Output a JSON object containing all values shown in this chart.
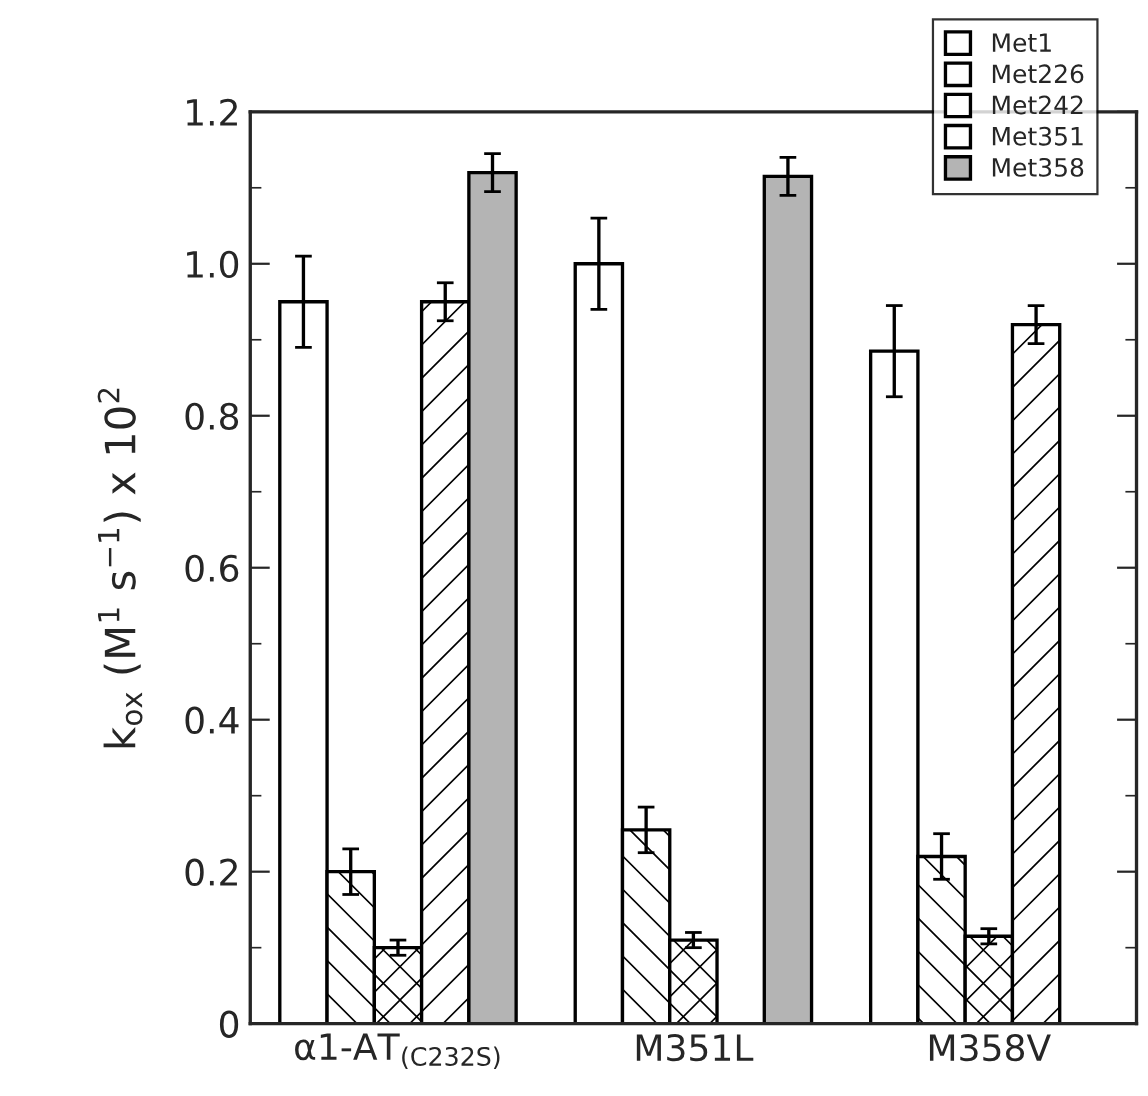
{
  "chart_data": {
    "type": "bar",
    "ylabel": "k$_{ox}$ (M$^{1}$ s$^{−1}$) x 10$^{2}$",
    "categories": [
      "α1-AT$_{(C232S)}$",
      "M351L",
      "M358V"
    ],
    "series": [
      {
        "name": "Met1",
        "color": "#ffffff",
        "values": [
          0.95,
          1.0,
          0.885
        ],
        "errors": [
          0.06,
          0.06,
          0.06
        ]
      },
      {
        "name": "Met226",
        "color": "#ffffff",
        "values": [
          0.2,
          0.255,
          0.22
        ],
        "errors": [
          0.03,
          0.03,
          0.03
        ]
      },
      {
        "name": "Met242",
        "color": "#ffffff",
        "values": [
          0.1,
          0.11,
          0.115
        ],
        "errors": [
          0.01,
          0.01,
          0.01
        ]
      },
      {
        "name": "Met351",
        "color": "#ffffff",
        "values": [
          0.95,
          null,
          0.92
        ],
        "errors": [
          0.025,
          null,
          0.025
        ]
      },
      {
        "name": "Met358",
        "color": "#b4b4b4",
        "values": [
          1.12,
          1.115,
          null
        ],
        "errors": [
          0.025,
          0.025,
          null
        ]
      }
    ],
    "ylim": [
      0,
      1.2
    ],
    "yticks": [
      0,
      0.2,
      0.4,
      0.6,
      0.8,
      {
        "value": 1.0,
        "label": "1.0"
      },
      1.2
    ],
    "legend": "top right",
    "grid": false
  }
}
